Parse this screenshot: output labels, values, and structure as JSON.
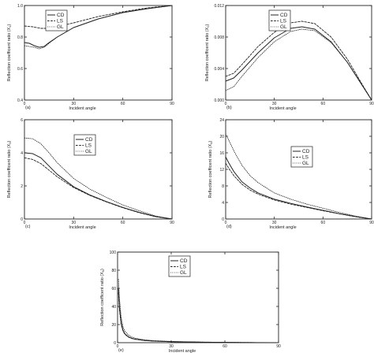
{
  "chart_data": [
    {
      "panel": "(a)",
      "type": "line",
      "xlabel": "Incident angle",
      "ylabel": "Reflection coefficent ratio (X",
      "ylabel_sub": "1",
      "ylabel_close": ")",
      "xlim": [
        0,
        90
      ],
      "ylim": [
        0.4,
        1.0
      ],
      "xticks": [
        "0",
        "30",
        "60",
        "90"
      ],
      "yticks": [
        "0.4",
        "0.6",
        "0.8",
        "1.0"
      ],
      "legend": [
        "CD",
        "LS",
        "GL"
      ],
      "series": [
        {
          "name": "CD",
          "x": [
            0,
            3,
            6,
            9,
            12,
            15,
            20,
            30,
            45,
            60,
            75,
            90
          ],
          "y": [
            0.765,
            0.76,
            0.745,
            0.735,
            0.74,
            0.765,
            0.8,
            0.86,
            0.915,
            0.955,
            0.98,
            1.0
          ]
        },
        {
          "name": "LS",
          "x": [
            0,
            5,
            10,
            15,
            20,
            30,
            45,
            60,
            75,
            90
          ],
          "y": [
            0.87,
            0.865,
            0.855,
            0.855,
            0.865,
            0.89,
            0.93,
            0.96,
            0.985,
            1.0
          ]
        },
        {
          "name": "GL",
          "x": [
            0,
            3,
            6,
            9,
            12,
            15,
            20,
            30,
            45,
            60,
            75,
            90
          ],
          "y": [
            0.745,
            0.74,
            0.735,
            0.725,
            0.735,
            0.76,
            0.8,
            0.86,
            0.915,
            0.955,
            0.98,
            1.0
          ]
        }
      ]
    },
    {
      "panel": "(b)",
      "type": "line",
      "xlabel": "Incident angle",
      "ylabel": "Reflection coefficent ratio (X",
      "ylabel_sub": "2",
      "ylabel_close": ")",
      "xlim": [
        0,
        90
      ],
      "ylim": [
        0.0,
        0.012
      ],
      "xticks": [
        "0",
        "30",
        "60",
        "90"
      ],
      "yticks": [
        "0.000",
        "0.004",
        "0.008",
        "0.012"
      ],
      "legend": [
        "CD",
        "LS",
        "GL"
      ],
      "series": [
        {
          "name": "CD",
          "x": [
            0,
            5,
            10,
            20,
            30,
            40,
            47,
            55,
            65,
            75,
            85,
            90
          ],
          "y": [
            0.0024,
            0.0028,
            0.0038,
            0.006,
            0.0079,
            0.0091,
            0.0093,
            0.009,
            0.0074,
            0.0048,
            0.0016,
            0.0
          ]
        },
        {
          "name": "LS",
          "x": [
            0,
            5,
            10,
            20,
            30,
            40,
            47,
            55,
            65,
            75,
            85,
            90
          ],
          "y": [
            0.003,
            0.0034,
            0.0045,
            0.0068,
            0.0086,
            0.0098,
            0.01,
            0.0097,
            0.008,
            0.0052,
            0.0017,
            0.0
          ]
        },
        {
          "name": "GL",
          "x": [
            0,
            5,
            10,
            20,
            30,
            40,
            47,
            55,
            65,
            75,
            85,
            90
          ],
          "y": [
            0.0012,
            0.0017,
            0.003,
            0.0054,
            0.0074,
            0.0087,
            0.009,
            0.0088,
            0.0073,
            0.0048,
            0.0016,
            0.0
          ]
        }
      ]
    },
    {
      "panel": "(c)",
      "type": "line",
      "xlabel": "Incident angle",
      "ylabel": "Reflection coefficent ratio (X",
      "ylabel_sub": "3",
      "ylabel_close": ")",
      "xlim": [
        0,
        90
      ],
      "ylim": [
        0,
        6
      ],
      "xticks": [
        "0",
        "30",
        "60",
        "90"
      ],
      "yticks": [
        "0",
        "2",
        "4",
        "6"
      ],
      "legend": [
        "CD",
        "LS",
        "GL"
      ],
      "series": [
        {
          "name": "CD",
          "x": [
            0,
            5,
            10,
            15,
            20,
            30,
            40,
            50,
            60,
            70,
            80,
            90
          ],
          "y": [
            4.0,
            3.95,
            3.7,
            3.2,
            2.7,
            1.95,
            1.45,
            1.05,
            0.7,
            0.4,
            0.15,
            0.0
          ]
        },
        {
          "name": "LS",
          "x": [
            0,
            5,
            10,
            15,
            20,
            30,
            40,
            50,
            60,
            70,
            80,
            90
          ],
          "y": [
            3.7,
            3.6,
            3.35,
            2.95,
            2.55,
            1.9,
            1.42,
            1.03,
            0.68,
            0.38,
            0.14,
            0.0
          ]
        },
        {
          "name": "GL",
          "x": [
            0,
            5,
            10,
            15,
            20,
            30,
            40,
            50,
            60,
            70,
            80,
            90
          ],
          "y": [
            4.9,
            4.85,
            4.55,
            4.0,
            3.4,
            2.45,
            1.8,
            1.3,
            0.85,
            0.5,
            0.18,
            0.0
          ]
        }
      ]
    },
    {
      "panel": "(d)",
      "type": "line",
      "xlabel": "Incident angle",
      "ylabel": "Reflection coefficent ratio (X",
      "ylabel_sub": "4",
      "ylabel_close": ")",
      "xlim": [
        0,
        90
      ],
      "ylim": [
        0,
        24
      ],
      "xticks": [
        "0",
        "30",
        "60",
        "90"
      ],
      "yticks": [
        "0",
        "4",
        "8",
        "12",
        "16",
        "20",
        "24"
      ],
      "legend": [
        "CD",
        "LS",
        "GL"
      ],
      "series": [
        {
          "name": "CD",
          "x": [
            0,
            2,
            5,
            10,
            15,
            20,
            30,
            40,
            50,
            60,
            70,
            80,
            90
          ],
          "y": [
            15.0,
            13.5,
            11.5,
            9.0,
            7.5,
            6.3,
            4.8,
            3.8,
            2.9,
            2.1,
            1.3,
            0.6,
            0.0
          ]
        },
        {
          "name": "LS",
          "x": [
            0,
            2,
            5,
            10,
            15,
            20,
            30,
            40,
            50,
            60,
            70,
            80,
            90
          ],
          "y": [
            13.5,
            12.2,
            10.5,
            8.4,
            7.0,
            6.0,
            4.6,
            3.6,
            2.8,
            2.0,
            1.25,
            0.55,
            0.0
          ]
        },
        {
          "name": "GL",
          "x": [
            0,
            2,
            5,
            10,
            15,
            20,
            30,
            40,
            50,
            60,
            70,
            80,
            90
          ],
          "y": [
            20.5,
            19.0,
            16.5,
            13.0,
            10.5,
            8.8,
            6.3,
            4.8,
            3.6,
            2.6,
            1.6,
            0.7,
            0.0
          ]
        }
      ]
    },
    {
      "panel": "(e)",
      "type": "line",
      "xlabel": "Incident angle",
      "ylabel": "Reflection coefficent ratio (X",
      "ylabel_sub": "5",
      "ylabel_close": ")",
      "xlim": [
        0,
        90
      ],
      "ylim": [
        0,
        100
      ],
      "xticks": [
        "0",
        "30",
        "60",
        "90"
      ],
      "yticks": [
        "0",
        "20",
        "40",
        "60",
        "80",
        "100"
      ],
      "legend": [
        "CD",
        "LS",
        "GL"
      ],
      "series": [
        {
          "name": "CD",
          "x": [
            0.5,
            1,
            2,
            3,
            4,
            6,
            8,
            10,
            15,
            20,
            30,
            45,
            60,
            75,
            90
          ],
          "y": [
            60,
            40,
            22,
            14,
            10,
            6.5,
            4.8,
            3.8,
            2.5,
            1.8,
            1.1,
            0.6,
            0.3,
            0.1,
            0.0
          ]
        },
        {
          "name": "LS",
          "x": [
            0.5,
            1,
            2,
            3,
            4,
            6,
            8,
            10,
            15,
            20,
            30,
            45,
            60,
            75,
            90
          ],
          "y": [
            55,
            37,
            20,
            13,
            9.5,
            6.2,
            4.6,
            3.7,
            2.4,
            1.7,
            1.05,
            0.55,
            0.3,
            0.1,
            0.0
          ]
        },
        {
          "name": "GL",
          "x": [
            0.5,
            1,
            2,
            3,
            4,
            6,
            8,
            10,
            15,
            20,
            30,
            45,
            60,
            75,
            90
          ],
          "y": [
            70,
            50,
            28,
            18,
            13,
            8.5,
            6.2,
            4.9,
            3.2,
            2.3,
            1.4,
            0.75,
            0.4,
            0.15,
            0.0
          ]
        }
      ]
    }
  ]
}
